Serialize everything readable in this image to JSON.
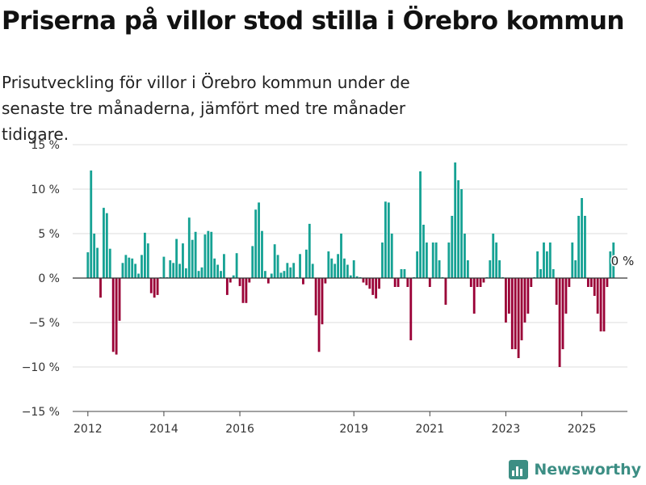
{
  "title": "Priserna på villor stod stilla i Örebro kommun",
  "subtitle": "Prisutveckling för villor i Örebro kommun under de senaste tre månaderna, jämfört med tre månader tidigare.",
  "brand": {
    "name": "Newsworthy",
    "color": "#3c8e84"
  },
  "colors": {
    "positive": "#16a294",
    "negative": "#9a0036",
    "zero_line": "#333333",
    "grid": "#dddddd"
  },
  "chart_data": {
    "type": "bar",
    "title": "Priserna på villor stod stilla i Örebro kommun",
    "ylim": [
      -15,
      15
    ],
    "yticks": [
      15,
      10,
      5,
      0,
      -5,
      -10,
      -15
    ],
    "ytick_labels": [
      "15 %",
      "10 %",
      "5 %",
      "0 %",
      "−5 %",
      "−10 %",
      "−15 %"
    ],
    "xlim": [
      2011.6,
      2026.2
    ],
    "xticks": [
      2012,
      2014,
      2016,
      2019,
      2021,
      2023,
      2025
    ],
    "xtick_labels": [
      "2012",
      "2014",
      "2016",
      "2019",
      "2021",
      "2023",
      "2025"
    ],
    "grid": true,
    "last_value_label": "0 %",
    "start": 2012.0,
    "step": 0.0833333,
    "values": [
      2.9,
      12.1,
      5.0,
      3.4,
      -2.2,
      7.9,
      7.3,
      3.3,
      -8.3,
      -8.6,
      -4.8,
      1.7,
      2.6,
      2.3,
      2.2,
      1.6,
      0.5,
      2.6,
      5.1,
      3.9,
      -1.7,
      -2.2,
      -1.9,
      0.1,
      2.4,
      0.1,
      2.0,
      1.7,
      4.4,
      1.6,
      3.9,
      1.1,
      6.8,
      4.3,
      5.2,
      0.8,
      1.2,
      4.9,
      5.3,
      5.2,
      2.2,
      1.5,
      0.8,
      2.7,
      -1.9,
      -0.5,
      0.3,
      2.8,
      -0.9,
      -2.8,
      -2.8,
      -0.5,
      3.6,
      7.7,
      8.5,
      5.3,
      0.8,
      -0.6,
      0.5,
      3.8,
      2.6,
      0.6,
      0.8,
      1.7,
      1.2,
      1.7,
      0.1,
      2.7,
      -0.7,
      3.2,
      6.1,
      1.6,
      -4.2,
      -8.3,
      -5.2,
      -0.6,
      3.0,
      2.2,
      1.6,
      2.7,
      5.0,
      2.2,
      1.5,
      0.3,
      2.0,
      0.2,
      0.1,
      -0.5,
      -0.8,
      -1.2,
      -1.9,
      -2.3,
      -1.2,
      4.0,
      8.6,
      8.5,
      5.0,
      -1.0,
      -1.0,
      1.0,
      1.0,
      -1.0,
      -7.0,
      0.1,
      3.0,
      12.0,
      6.0,
      4.0,
      -1.0,
      4.0,
      4.0,
      2.0,
      0.1,
      -3.0,
      4.0,
      7.0,
      13.0,
      11.0,
      10.0,
      5.0,
      2.0,
      -1.0,
      -4.0,
      -1.0,
      -1.0,
      -0.5,
      0.1,
      2.0,
      5.0,
      4.0,
      2.0,
      0.1,
      -5.0,
      -4.0,
      -8.0,
      -8.0,
      -9.0,
      -7.0,
      -5.0,
      -4.0,
      -1.0,
      0.1,
      3.0,
      1.0,
      4.0,
      3.0,
      4.0,
      1.0,
      -3.0,
      -10.0,
      -8.0,
      -4.0,
      -1.0,
      4.0,
      2.0,
      7.0,
      9.0,
      7.0,
      -1.0,
      -1.0,
      -2.0,
      -4.0,
      -6.0,
      -6.0,
      -1.0,
      3.0,
      4.0,
      0.0
    ]
  }
}
